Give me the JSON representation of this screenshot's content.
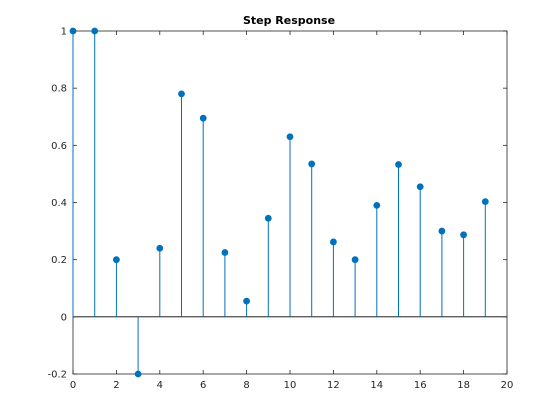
{
  "chart_data": {
    "type": "stem",
    "title": "Step Response",
    "xlabel": "",
    "ylabel": "",
    "xlim": [
      0,
      20
    ],
    "ylim": [
      -0.2,
      1
    ],
    "xticks": [
      0,
      2,
      4,
      6,
      8,
      10,
      12,
      14,
      16,
      18,
      20
    ],
    "yticks": [
      -0.2,
      0,
      0.2,
      0.4,
      0.6,
      0.8,
      1
    ],
    "x": [
      0,
      1,
      2,
      3,
      4,
      5,
      6,
      7,
      8,
      9,
      10,
      11,
      12,
      13,
      14,
      15,
      16,
      17,
      18,
      19
    ],
    "values": [
      1.0,
      1.0,
      0.2,
      -0.2,
      0.24,
      0.78,
      0.695,
      0.225,
      0.055,
      0.345,
      0.63,
      0.535,
      0.262,
      0.2,
      0.39,
      0.533,
      0.455,
      0.3,
      0.287,
      0.403
    ],
    "grid": false,
    "colors": {
      "stem": "#0072bd",
      "axis": "#262626",
      "baseline": "#000000"
    }
  }
}
